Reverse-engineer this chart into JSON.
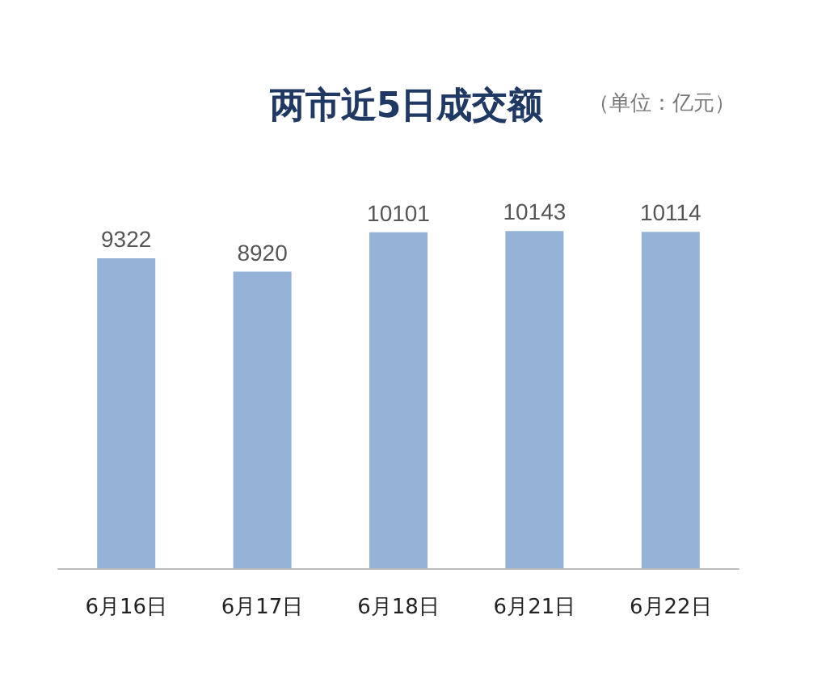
{
  "chart_data": {
    "type": "bar",
    "title": "两市近5日成交额",
    "annotations": [
      "（单位：亿元）"
    ],
    "categories": [
      "6月16日",
      "6月17日",
      "6月18日",
      "6月21日",
      "6月22日"
    ],
    "values": [
      9322,
      8920,
      10101,
      10143,
      10114
    ],
    "color": "#95b3d7",
    "data_labels": true
  }
}
